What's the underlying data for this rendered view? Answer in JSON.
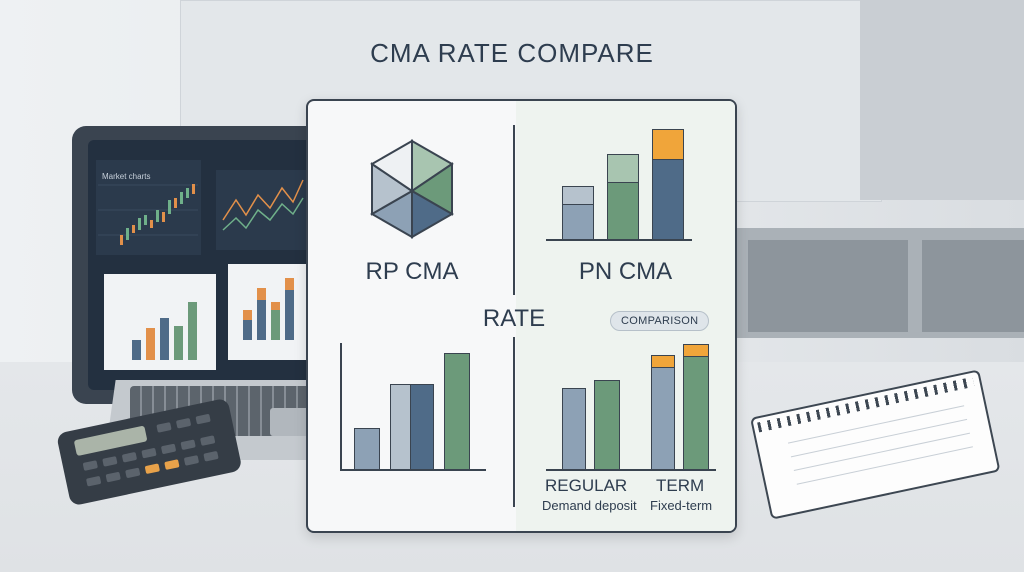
{
  "title": "CMA RATE COMPARE",
  "laptop": {
    "screen_label": "Market charts"
  },
  "card": {
    "left_label": "RP CMA",
    "right_label": "PN CMA",
    "center_label": "RATE",
    "badge": "COMPARISON",
    "regular_label": "REGULAR",
    "regular_sub": "Demand deposit",
    "term_label": "TERM",
    "term_sub": "Fixed-term"
  },
  "colors": {
    "navy": "#4f6b88",
    "green": "#6c9a7a",
    "slate": "#8da1b5",
    "orange": "#f0a53a",
    "light_slate": "#b6c2cd",
    "light_green": "#a8c5b0"
  },
  "icons": [
    "hexagon-logo-icon",
    "calculator-icon",
    "notebook-icon",
    "laptop-icon"
  ]
}
